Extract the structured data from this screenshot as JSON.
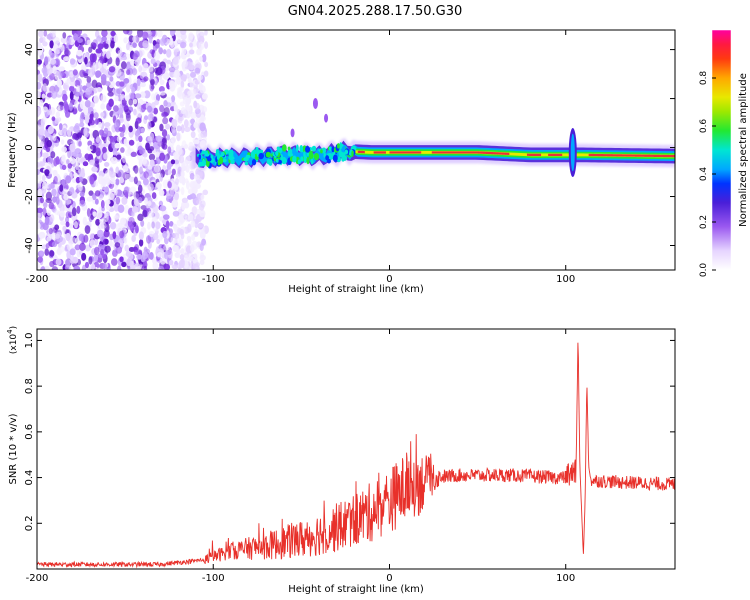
{
  "title": "GN04.2025.288.17.50.G30",
  "colors": {
    "snr_line": "#e8302a",
    "axis": "#000000",
    "noise": "#7b2fe0",
    "band_center": "#e8303a"
  },
  "chart_data": [
    {
      "type": "heatmap",
      "name": "spectrogram",
      "xlabel": "Height of straight line (km)",
      "ylabel": "Frequency (Hz)",
      "xlim": [
        -200,
        162
      ],
      "ylim": [
        -50,
        48
      ],
      "x_ticks": [
        -200,
        -100,
        0,
        100
      ],
      "y_ticks": [
        -40,
        -20,
        0,
        20,
        40
      ],
      "colorbar": {
        "label": "Normalized spectral amplitude",
        "range": [
          0,
          1
        ],
        "ticks": [
          "0.0",
          "0.2",
          "0.4",
          "0.6",
          "0.8"
        ],
        "tick_values": [
          0.0,
          0.2,
          0.4,
          0.6,
          0.8
        ],
        "stops": [
          [
            0.0,
            "#ffffff"
          ],
          [
            0.08,
            "#e6d4ff"
          ],
          [
            0.18,
            "#9b59f0"
          ],
          [
            0.28,
            "#4a1fd8"
          ],
          [
            0.36,
            "#0033ff"
          ],
          [
            0.42,
            "#00a8ff"
          ],
          [
            0.5,
            "#00e6d2"
          ],
          [
            0.58,
            "#22e832"
          ],
          [
            0.66,
            "#9ee800"
          ],
          [
            0.72,
            "#e8e800"
          ],
          [
            0.8,
            "#ffa800"
          ],
          [
            0.88,
            "#ff3a10"
          ],
          [
            0.94,
            "#ff1a40"
          ],
          [
            1.0,
            "#ff00a0"
          ]
        ]
      },
      "noise_region": {
        "x_min": -200,
        "x_max": -110
      },
      "band": [
        [
          -110,
          -4.5
        ],
        [
          -80,
          -4
        ],
        [
          -60,
          -3
        ],
        [
          -40,
          -3.5
        ],
        [
          -25,
          -1.5
        ],
        [
          -10,
          -2
        ],
        [
          0,
          -2
        ],
        [
          50,
          -2
        ],
        [
          80,
          -3
        ],
        [
          100,
          -3
        ],
        [
          110,
          -3
        ],
        [
          162,
          -3.5
        ]
      ],
      "spike": {
        "x": 104,
        "f_low": -12,
        "f_high": 8
      }
    },
    {
      "type": "line",
      "name": "snr",
      "xlabel": "Height of straight line (km)",
      "ylabel": "SNR (10 * v/v)",
      "y_multiplier": "(x10",
      "y_multiplier_exp": "4",
      "y_multiplier_close": ")",
      "xlim": [
        -200,
        162
      ],
      "ylim": [
        0,
        1.05
      ],
      "x_ticks": [
        -200,
        -100,
        0,
        100
      ],
      "y_ticks": [
        "0.2",
        "0.4",
        "0.6",
        "0.8",
        "1.0"
      ],
      "y_tick_values": [
        0.2,
        0.4,
        0.6,
        0.8,
        1.0
      ],
      "envelope": [
        [
          -200,
          0.02
        ],
        [
          -130,
          0.02
        ],
        [
          -105,
          0.04
        ],
        [
          -90,
          0.08
        ],
        [
          -70,
          0.1
        ],
        [
          -50,
          0.13
        ],
        [
          -30,
          0.18
        ],
        [
          -10,
          0.25
        ],
        [
          0,
          0.3
        ],
        [
          10,
          0.36
        ],
        [
          25,
          0.4
        ],
        [
          40,
          0.41
        ],
        [
          70,
          0.41
        ],
        [
          95,
          0.4
        ],
        [
          100,
          0.4
        ],
        [
          110,
          0.39
        ],
        [
          130,
          0.38
        ],
        [
          162,
          0.37
        ]
      ],
      "features": [
        {
          "x": 107,
          "y": 1.03
        },
        {
          "x": 110,
          "y": 0.06
        },
        {
          "x": 112,
          "y": 0.83
        }
      ]
    }
  ]
}
